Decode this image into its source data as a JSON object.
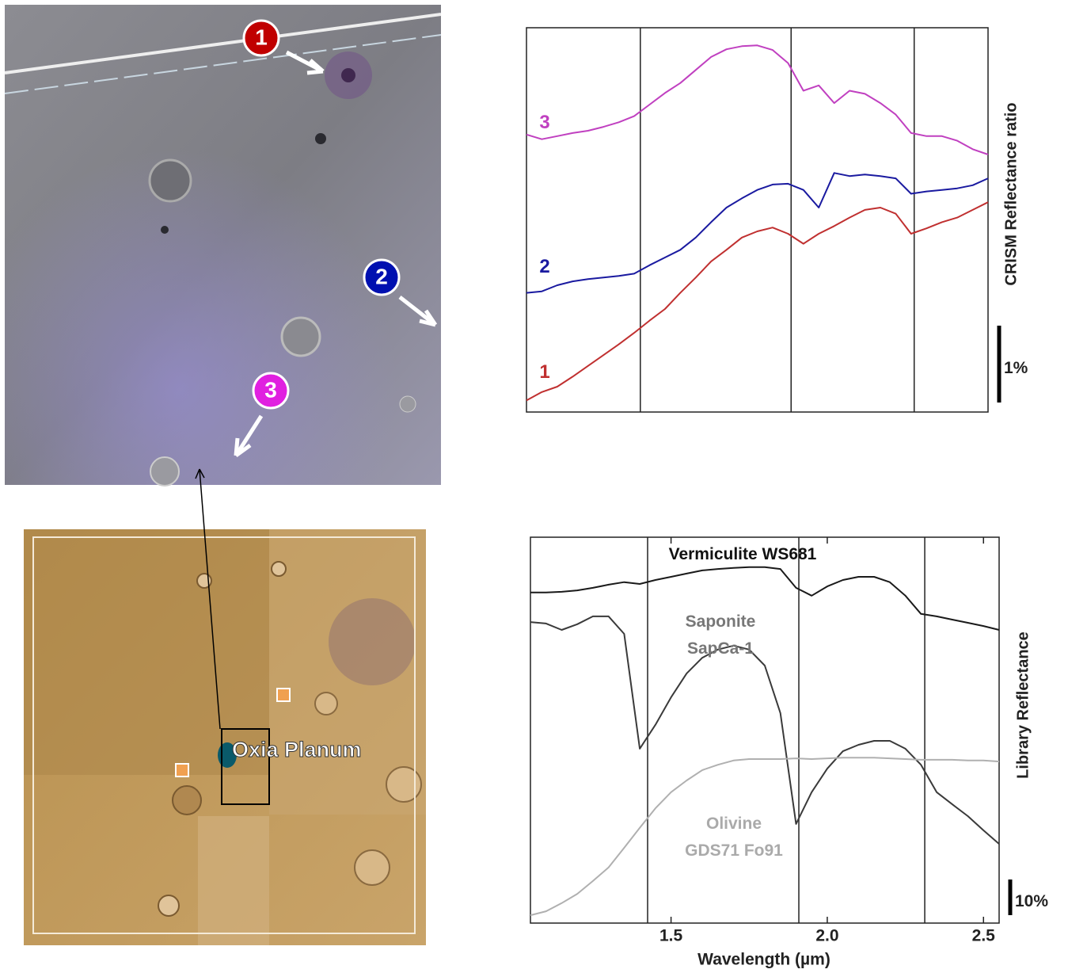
{
  "chart_data": [
    {
      "type": "line",
      "y_label": "CRISM Reflectance ratio",
      "x": [
        1.05,
        1.1,
        1.15,
        1.2,
        1.25,
        1.3,
        1.35,
        1.4,
        1.45,
        1.5,
        1.55,
        1.6,
        1.65,
        1.7,
        1.75,
        1.8,
        1.85,
        1.9,
        1.95,
        2.0,
        2.05,
        2.1,
        2.15,
        2.2,
        2.25,
        2.3,
        2.35,
        2.4,
        2.45,
        2.5,
        2.55
      ],
      "xlim": [
        1.05,
        2.55
      ],
      "ylim": [
        0,
        5
      ],
      "reference_lines": [
        1.42,
        1.91,
        2.31
      ],
      "scale_bar": {
        "value": 1,
        "label": "1%"
      },
      "series": [
        {
          "name": "1",
          "color": "#c03030",
          "values": [
            0.15,
            0.26,
            0.33,
            0.46,
            0.6,
            0.74,
            0.88,
            1.03,
            1.19,
            1.34,
            1.55,
            1.75,
            1.96,
            2.11,
            2.27,
            2.35,
            2.4,
            2.32,
            2.19,
            2.32,
            2.42,
            2.53,
            2.63,
            2.66,
            2.58,
            2.32,
            2.39,
            2.47,
            2.53,
            2.63,
            2.73
          ]
        },
        {
          "name": "2",
          "color": "#1a1aa0",
          "values": [
            1.55,
            1.57,
            1.65,
            1.7,
            1.73,
            1.75,
            1.77,
            1.8,
            1.91,
            2.01,
            2.11,
            2.27,
            2.47,
            2.66,
            2.78,
            2.89,
            2.96,
            2.97,
            2.89,
            2.66,
            3.11,
            3.07,
            3.09,
            3.07,
            3.04,
            2.84,
            2.87,
            2.89,
            2.91,
            2.95,
            3.04
          ]
        },
        {
          "name": "3",
          "color": "#c040c0",
          "values": [
            3.61,
            3.55,
            3.59,
            3.63,
            3.66,
            3.71,
            3.77,
            3.85,
            4.0,
            4.15,
            4.28,
            4.45,
            4.62,
            4.72,
            4.76,
            4.77,
            4.71,
            4.54,
            4.18,
            4.25,
            4.02,
            4.18,
            4.14,
            4.02,
            3.87,
            3.63,
            3.59,
            3.59,
            3.53,
            3.42,
            3.35
          ]
        }
      ]
    },
    {
      "type": "line",
      "x_label": "Wavelength (µm)",
      "y_label": "Library Reflectance",
      "x": [
        1.05,
        1.1,
        1.15,
        1.2,
        1.25,
        1.3,
        1.35,
        1.4,
        1.45,
        1.5,
        1.55,
        1.6,
        1.65,
        1.7,
        1.75,
        1.8,
        1.85,
        1.9,
        1.95,
        2.0,
        2.05,
        2.1,
        2.15,
        2.2,
        2.25,
        2.3,
        2.35,
        2.4,
        2.45,
        2.5,
        2.55
      ],
      "xlim": [
        1.05,
        2.55
      ],
      "ylim": [
        0,
        108.2
      ],
      "xticks": [
        1.5,
        {
          "value": 2,
          "label": "2.0"
        },
        2.5
      ],
      "reference_lines": [
        1.425,
        1.909,
        2.312
      ],
      "scale_bar": {
        "value": 10,
        "label": "10%"
      },
      "series": [
        {
          "name": "Vermiculite WS681",
          "color": "#1a1a1a",
          "values": [
            92.7,
            92.7,
            92.9,
            93.3,
            94.0,
            94.9,
            95.6,
            95.1,
            96.2,
            97.1,
            98.0,
            98.9,
            99.3,
            99.6,
            99.8,
            99.8,
            99.3,
            94.0,
            91.8,
            94.4,
            96.2,
            97.1,
            97.1,
            95.6,
            91.8,
            86.7,
            86.0,
            85.1,
            84.2,
            83.3,
            82.2
          ]
        },
        {
          "name": "Saponite SapCa-1",
          "color": "#3a3a3a",
          "values": [
            84.4,
            84.0,
            82.2,
            83.8,
            86.0,
            86.0,
            81.1,
            48.9,
            55.6,
            63.3,
            70.0,
            74.4,
            76.7,
            77.8,
            76.7,
            72.2,
            58.9,
            27.8,
            36.7,
            43.3,
            48.2,
            50.0,
            51.1,
            51.1,
            48.9,
            44.4,
            36.7,
            33.3,
            30.0,
            26.0,
            22.2
          ]
        },
        {
          "name": "Olivine GDS71 Fo91",
          "color": "#b0b0b0",
          "values": [
            2.2,
            3.3,
            5.6,
            8.2,
            11.8,
            15.6,
            21.1,
            26.7,
            32.2,
            36.7,
            40.0,
            42.9,
            44.4,
            45.6,
            46.0,
            46.0,
            46.0,
            46.2,
            46.0,
            46.2,
            46.4,
            46.4,
            46.4,
            46.2,
            46.0,
            45.8,
            45.8,
            45.8,
            45.6,
            45.6,
            45.3
          ]
        }
      ]
    }
  ],
  "images": {
    "crism_scene": {
      "markers": [
        "1",
        "2",
        "3"
      ]
    },
    "context_map": {
      "label": "Oxia Planum"
    }
  }
}
